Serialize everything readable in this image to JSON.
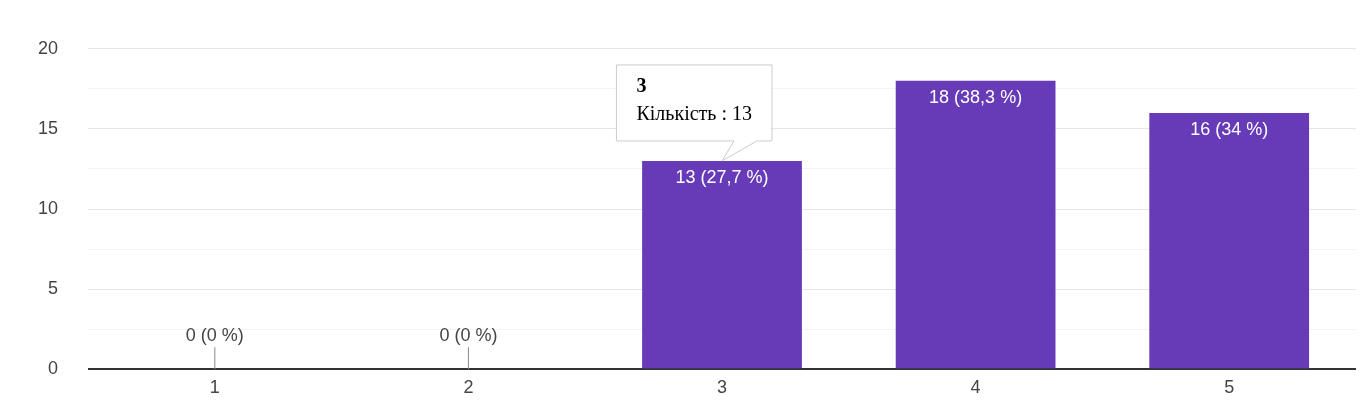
{
  "chart_data": {
    "type": "bar",
    "categories": [
      "1",
      "2",
      "3",
      "4",
      "5"
    ],
    "values": [
      0,
      0,
      13,
      18,
      16
    ],
    "color": "#673ab7",
    "value_labels": [
      "0 (0 %)",
      "0 (0 %)",
      "13 (27,7 %)",
      "18 (38,3 %)",
      "16 (34 %)"
    ],
    "ylim": [
      0,
      20
    ],
    "yticks": [
      0,
      {
        "value": 2.5,
        "label": null
      },
      5,
      {
        "value": 7.5,
        "label": null
      },
      10,
      {
        "value": 12.5,
        "label": null
      },
      15,
      {
        "value": 17.5,
        "label": null
      },
      20
    ],
    "grid": "y",
    "legend": false,
    "annotations": [
      {
        "text": "3\nКількість : 13",
        "x": "3",
        "y": 13
      }
    ]
  }
}
